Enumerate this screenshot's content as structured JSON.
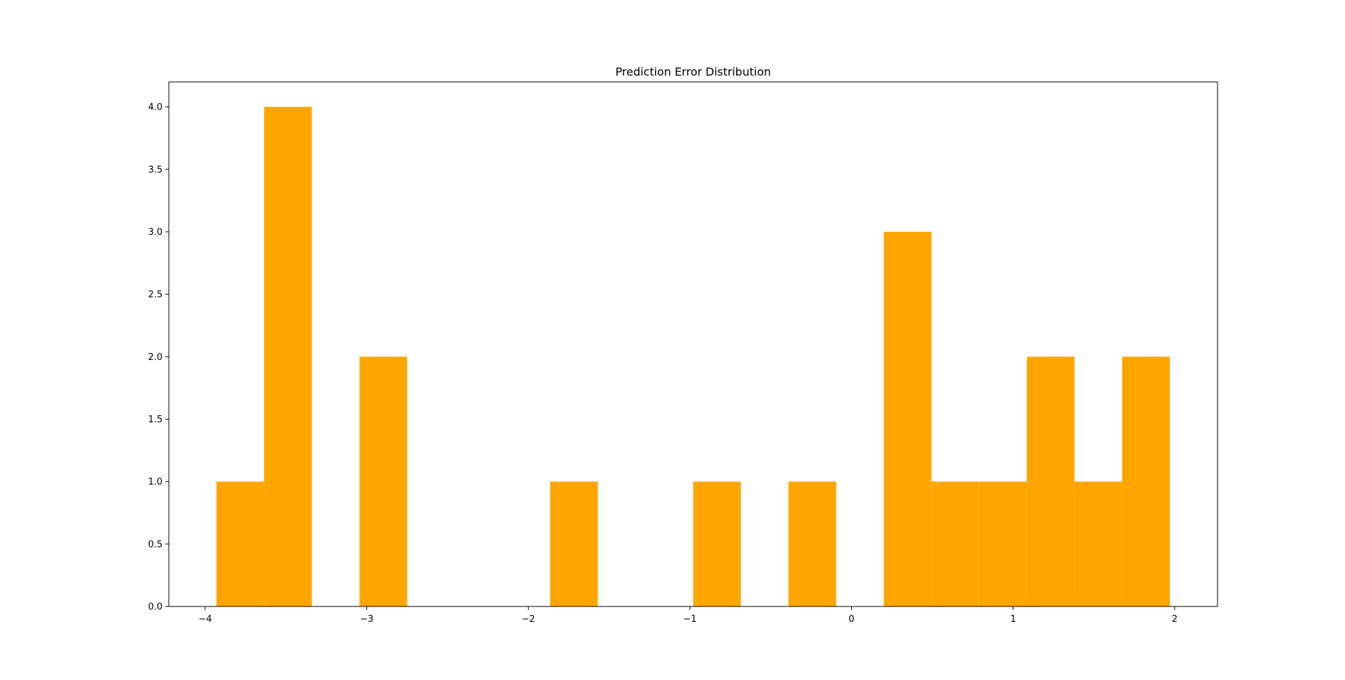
{
  "chart_data": {
    "type": "bar",
    "title": "Prediction Error Distribution",
    "xlabel": "",
    "ylabel": "",
    "bin_edges": [
      -3.93,
      -3.635,
      -3.34,
      -3.045,
      -2.75,
      -2.455,
      -2.16,
      -1.865,
      -1.57,
      -1.275,
      -0.98,
      -0.685,
      -0.39,
      -0.095,
      0.2,
      0.495,
      0.79,
      1.085,
      1.38,
      1.675,
      1.97
    ],
    "values": [
      1,
      4,
      0,
      2,
      0,
      0,
      0,
      1,
      0,
      0,
      1,
      0,
      1,
      0,
      3,
      1,
      1,
      2,
      1,
      2
    ],
    "xlim": [
      -4.225,
      2.265
    ],
    "ylim": [
      0,
      4.2
    ],
    "x_ticks": [
      {
        "value": -4,
        "label": "−4"
      },
      {
        "value": -3,
        "label": "−3"
      },
      {
        "value": -2,
        "label": "−2"
      },
      {
        "value": -1,
        "label": "−1"
      },
      {
        "value": 0,
        "label": "0"
      },
      {
        "value": 1,
        "label": "1"
      },
      {
        "value": 2,
        "label": "2"
      }
    ],
    "y_ticks": [
      {
        "value": 0,
        "label": "0.0"
      },
      {
        "value": 0.5,
        "label": "0.5"
      },
      {
        "value": 1,
        "label": "1.0"
      },
      {
        "value": 1.5,
        "label": "1.5"
      },
      {
        "value": 2,
        "label": "2.0"
      },
      {
        "value": 2.5,
        "label": "2.5"
      },
      {
        "value": 3,
        "label": "3.0"
      },
      {
        "value": 3.5,
        "label": "3.5"
      },
      {
        "value": 4,
        "label": "4.0"
      }
    ],
    "bar_color": "#ffa500",
    "grid": false,
    "legend": "none"
  }
}
